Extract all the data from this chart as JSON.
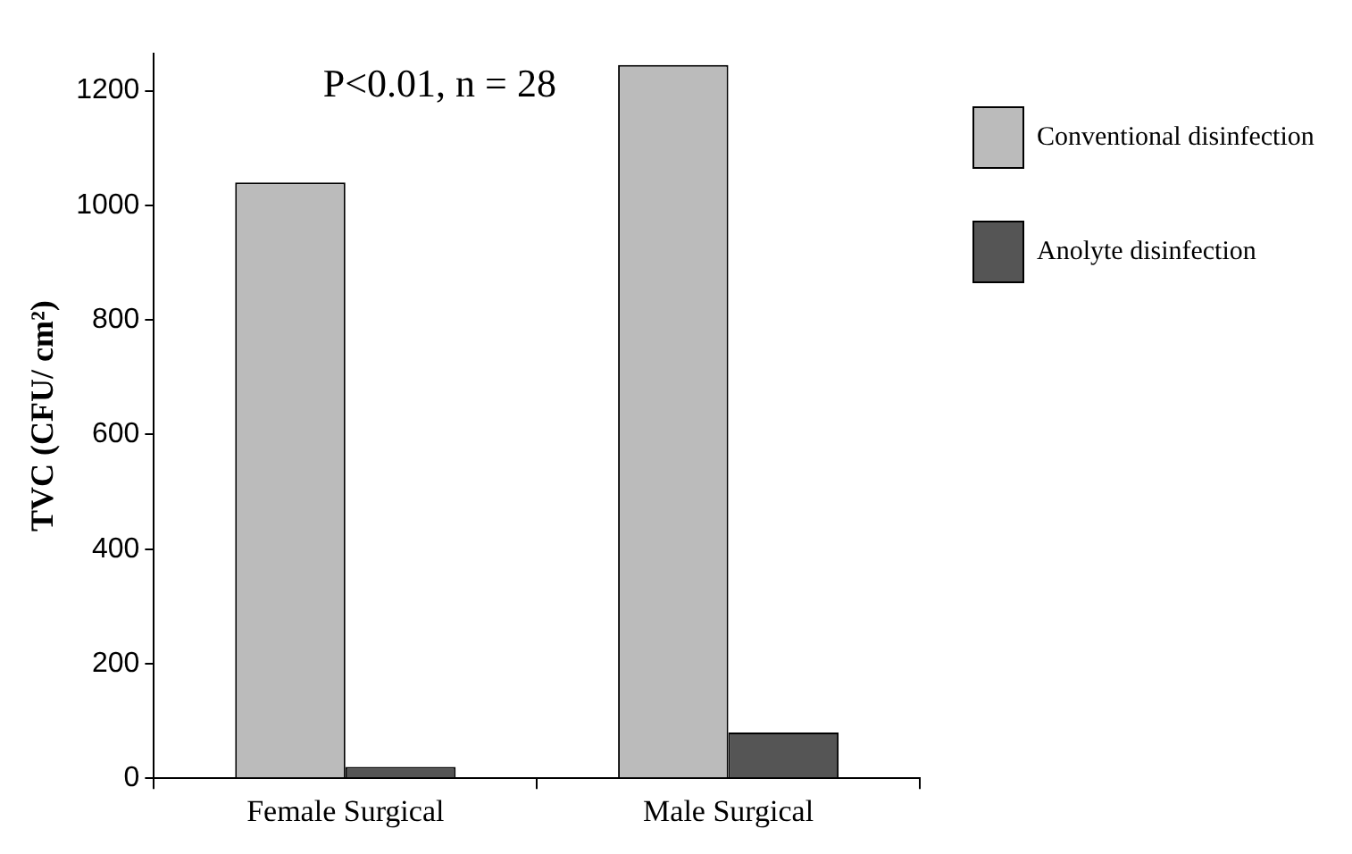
{
  "chart_data": {
    "type": "bar",
    "ylabel": "TVC (CFU/ cm²)",
    "categories": [
      "Female Surgical",
      "Male Surgical"
    ],
    "series": [
      {
        "name": "Conventional disinfection",
        "color": "#bbbbbb",
        "values": [
          1040,
          1245
        ]
      },
      {
        "name": "Anolyte disinfection",
        "color": "#555555",
        "values": [
          20,
          80
        ]
      }
    ],
    "ylim": [
      0,
      1265
    ],
    "yticks": [
      0,
      200,
      400,
      600,
      800,
      1000,
      1200
    ],
    "grid": false,
    "legend": "right",
    "annotations": [
      "P<0.01, n = 28"
    ]
  }
}
